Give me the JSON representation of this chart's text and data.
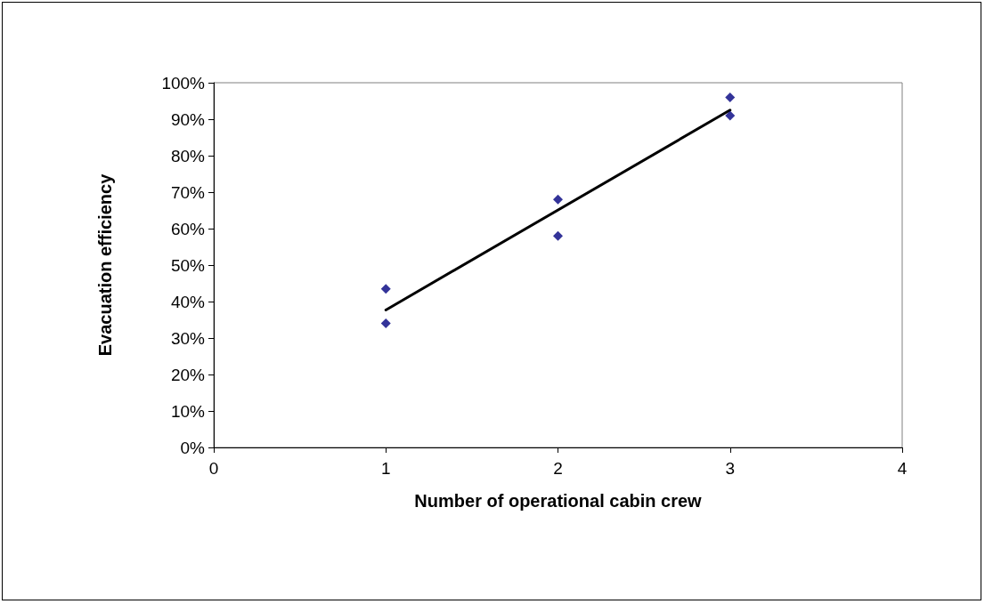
{
  "chart_data": {
    "type": "scatter",
    "xlabel": "Number of operational cabin crew",
    "ylabel": "Evacuation efficiency",
    "xlim": [
      0,
      4
    ],
    "xticks": [
      0,
      1,
      2,
      3,
      4
    ],
    "ylim": [
      0,
      100
    ],
    "yticks": [
      {
        "value": 0,
        "label": "0%"
      },
      {
        "value": 10,
        "label": "10%"
      },
      {
        "value": 20,
        "label": "20%"
      },
      {
        "value": 30,
        "label": "30%"
      },
      {
        "value": 40,
        "label": "40%"
      },
      {
        "value": 50,
        "label": "50%"
      },
      {
        "value": 60,
        "label": "60%"
      },
      {
        "value": 70,
        "label": "70%"
      },
      {
        "value": 80,
        "label": "80%"
      },
      {
        "value": 90,
        "label": "90%"
      },
      {
        "value": 100,
        "label": "100%"
      }
    ],
    "grid": false,
    "marker": "diamond",
    "series": [
      {
        "color": "#000080",
        "x": [
          1,
          1,
          2,
          2,
          3,
          3
        ],
        "values": [
          43.5,
          34,
          68,
          58,
          96,
          91
        ]
      },
      {
        "type": "line",
        "color": "#000000",
        "marker": "none",
        "line_style": "solid",
        "x": [
          1,
          3
        ],
        "values": [
          37.7,
          92.5
        ]
      }
    ]
  }
}
